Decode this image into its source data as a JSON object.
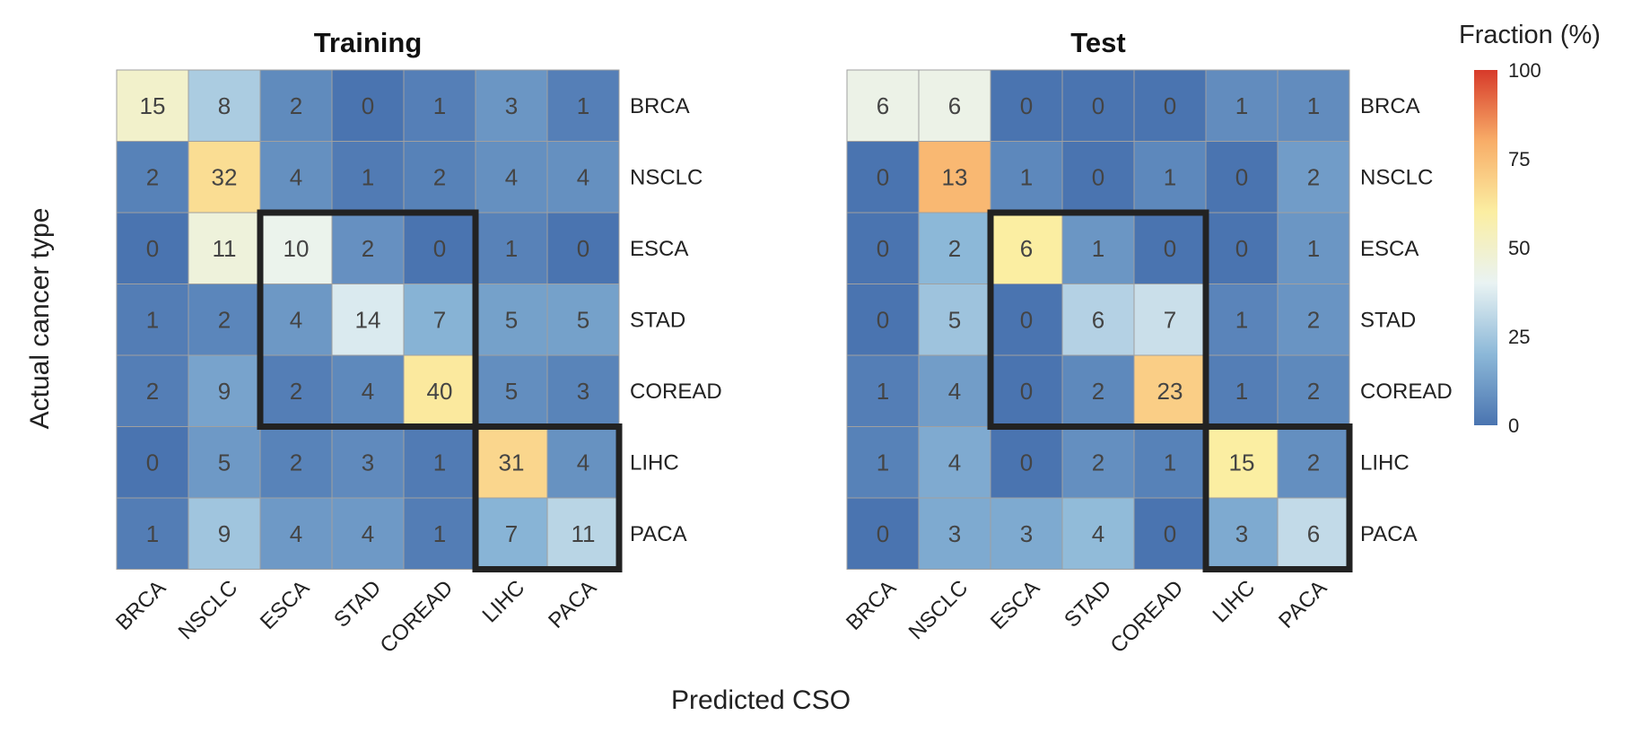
{
  "colors": {
    "scale": [
      "#4a74b0",
      "#8cb8d8",
      "#e9f3f3",
      "#fbeea2",
      "#f8ad68",
      "#d73a2a"
    ],
    "cell_border": "#a0a0a0",
    "highlight_box": "#222222"
  },
  "chart_data": {
    "type": "heatmap",
    "xlabel": "Predicted CSO",
    "ylabel": "Actual cancer type",
    "legend": {
      "title": "Fraction (%)",
      "ticks": [
        0,
        25,
        50,
        75,
        100
      ],
      "range": [
        0,
        100
      ]
    },
    "row_labels": [
      "BRCA",
      "NSCLC",
      "ESCA",
      "STAD",
      "COREAD",
      "LIHC",
      "PACA"
    ],
    "col_labels": [
      "BRCA",
      "NSCLC",
      "ESCA",
      "STAD",
      "COREAD",
      "LIHC",
      "PACA"
    ],
    "highlight_groups": [
      {
        "rows": [
          2,
          4
        ],
        "cols": [
          2,
          4
        ]
      },
      {
        "rows": [
          5,
          6
        ],
        "cols": [
          5,
          6
        ]
      }
    ],
    "panels": [
      {
        "title": "Training",
        "values": [
          [
            15,
            8,
            2,
            0,
            1,
            3,
            1
          ],
          [
            2,
            32,
            4,
            1,
            2,
            4,
            4
          ],
          [
            0,
            11,
            10,
            2,
            0,
            1,
            0
          ],
          [
            1,
            2,
            4,
            14,
            7,
            5,
            5
          ],
          [
            2,
            9,
            2,
            4,
            40,
            5,
            3
          ],
          [
            0,
            5,
            2,
            3,
            1,
            31,
            4
          ],
          [
            1,
            9,
            4,
            4,
            1,
            7,
            11
          ]
        ]
      },
      {
        "title": "Test",
        "values": [
          [
            6,
            6,
            0,
            0,
            0,
            1,
            1
          ],
          [
            0,
            13,
            1,
            0,
            1,
            0,
            2
          ],
          [
            0,
            2,
            6,
            1,
            0,
            0,
            1
          ],
          [
            0,
            5,
            0,
            6,
            7,
            1,
            2
          ],
          [
            1,
            4,
            0,
            2,
            23,
            1,
            2
          ],
          [
            1,
            4,
            0,
            2,
            1,
            15,
            2
          ],
          [
            0,
            3,
            3,
            4,
            0,
            3,
            6
          ]
        ]
      }
    ]
  }
}
